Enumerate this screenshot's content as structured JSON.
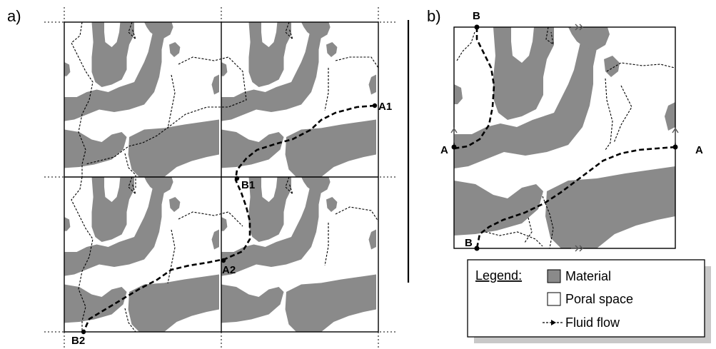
{
  "panels": {
    "a": "a)",
    "b": "b)"
  },
  "points_a": {
    "A1": "A1",
    "A2": "A2",
    "B1": "B1",
    "B2": "B2"
  },
  "points_b": {
    "A_left": "A",
    "A_right": "A",
    "B_top": "B",
    "B_bottom": "B"
  },
  "legend": {
    "title": "Legend:",
    "material": "Material",
    "poral": "Poral space",
    "flow": "Fluid flow"
  },
  "colors": {
    "material": "#8a8a8a",
    "poral": "#ffffff",
    "line": "#000000",
    "shadow": "#c8c8c8"
  }
}
